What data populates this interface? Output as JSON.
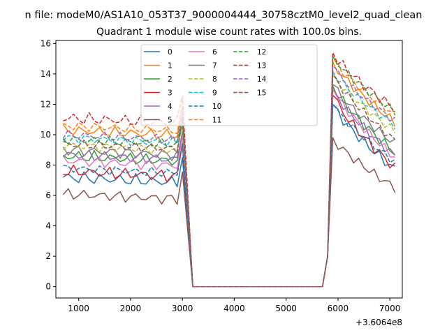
{
  "chart_data": {
    "type": "line",
    "suptitle": "n file: modeM0/AS1A10_053T37_9000004444_30758cztM0_level2_quad_clean",
    "title": "Quadrant 1 module wise count rates with 100.0s bins.",
    "xlabel": "",
    "ylabel": "",
    "x_offset_label": "+3.6064e8",
    "xlim": [
      560,
      7240
    ],
    "ylim": [
      -0.75,
      16.2
    ],
    "xticks": [
      1000,
      2000,
      3000,
      4000,
      5000,
      6000,
      7000
    ],
    "yticks": [
      0,
      2,
      4,
      6,
      8,
      10,
      12,
      14,
      16
    ],
    "grid": false,
    "legend": {
      "placement": "top-center",
      "columns": 4
    },
    "gap": {
      "end_before": 3000,
      "zero_from": 3200,
      "zero_to": 5700,
      "resume": 5900
    },
    "x_segment1": [
      700,
      800,
      900,
      1000,
      1100,
      1200,
      1300,
      1400,
      1500,
      1600,
      1700,
      1800,
      1900,
      2000,
      2100,
      2200,
      2300,
      2400,
      2500,
      2600,
      2700,
      2800,
      2900,
      3000
    ],
    "x_segment2": [
      5900,
      6000,
      6100,
      6200,
      6300,
      6400,
      6500,
      6600,
      6700,
      6800,
      6900,
      7000,
      7100
    ],
    "series": [
      {
        "name": "0",
        "color": "#1f77b4",
        "dash": false,
        "seg1_base": 7.2,
        "seg2_start": 12.0,
        "seg2_end": 7.7,
        "ripple": 0.45
      },
      {
        "name": "1",
        "color": "#ff7f0e",
        "dash": false,
        "seg1_base": 10.3,
        "seg2_start": 14.8,
        "seg2_end": 10.8,
        "ripple": 0.4
      },
      {
        "name": "2",
        "color": "#2ca02c",
        "dash": false,
        "seg1_base": 8.6,
        "seg2_start": 13.2,
        "seg2_end": 8.8,
        "ripple": 0.45
      },
      {
        "name": "3",
        "color": "#d62728",
        "dash": false,
        "seg1_base": 7.6,
        "seg2_start": 12.6,
        "seg2_end": 7.8,
        "ripple": 0.45
      },
      {
        "name": "4",
        "color": "#9467bd",
        "dash": false,
        "seg1_base": 8.7,
        "seg2_start": 13.0,
        "seg2_end": 8.6,
        "ripple": 0.4
      },
      {
        "name": "5",
        "color": "#8c564b",
        "dash": false,
        "seg1_base": 6.1,
        "seg2_start": 9.8,
        "seg2_end": 6.5,
        "ripple": 0.4
      },
      {
        "name": "6",
        "color": "#e377c2",
        "dash": false,
        "seg1_base": 8.3,
        "seg2_start": 13.0,
        "seg2_end": 8.5,
        "ripple": 0.4
      },
      {
        "name": "7",
        "color": "#7f7f7f",
        "dash": false,
        "seg1_base": 9.0,
        "seg2_start": 13.3,
        "seg2_end": 9.4,
        "ripple": 0.4
      },
      {
        "name": "8",
        "color": "#bcbd22",
        "dash": true,
        "seg1_base": 9.3,
        "seg2_start": 14.0,
        "seg2_end": 10.2,
        "ripple": 0.35
      },
      {
        "name": "9",
        "color": "#17becf",
        "dash": true,
        "seg1_base": 9.8,
        "seg2_start": 14.2,
        "seg2_end": 10.6,
        "ripple": 0.35
      },
      {
        "name": "10",
        "color": "#1f77b4",
        "dash": true,
        "seg1_base": 7.8,
        "seg2_start": 12.0,
        "seg2_end": 8.2,
        "ripple": 0.35
      },
      {
        "name": "11",
        "color": "#ff7f0e",
        "dash": true,
        "seg1_base": 10.6,
        "seg2_start": 15.0,
        "seg2_end": 11.3,
        "ripple": 0.35
      },
      {
        "name": "12",
        "color": "#2ca02c",
        "dash": true,
        "seg1_base": 9.7,
        "seg2_start": 15.2,
        "seg2_end": 11.5,
        "ripple": 0.35
      },
      {
        "name": "13",
        "color": "#d62728",
        "dash": true,
        "seg1_base": 11.1,
        "seg2_start": 15.4,
        "seg2_end": 11.7,
        "ripple": 0.45
      },
      {
        "name": "14",
        "color": "#9467bd",
        "dash": true,
        "seg1_base": 10.0,
        "seg2_start": 14.5,
        "seg2_end": 10.9,
        "ripple": 0.35
      },
      {
        "name": "15",
        "color": "#8c564b",
        "dash": true,
        "seg1_base": 9.4,
        "seg2_start": 14.0,
        "seg2_end": 9.6,
        "ripple": 0.35
      }
    ]
  }
}
